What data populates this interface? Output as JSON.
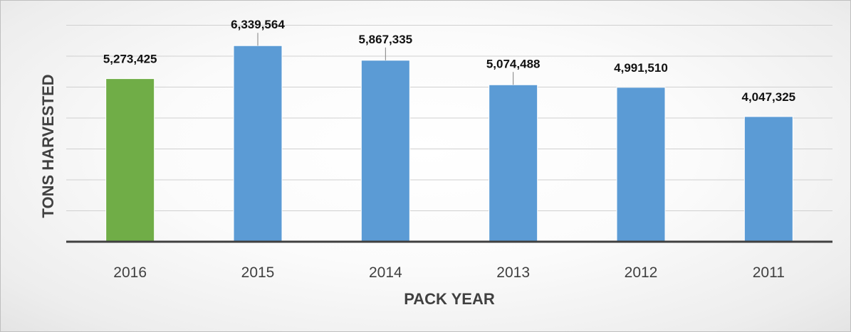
{
  "chart_data": {
    "type": "bar",
    "title": "",
    "xlabel": "PACK YEAR",
    "ylabel": "TONS HARVESTED",
    "categories": [
      "2016",
      "2015",
      "2014",
      "2013",
      "2012",
      "2011"
    ],
    "values": [
      5273425,
      6339564,
      5867335,
      5074488,
      4991510,
      4047325
    ],
    "data_labels": [
      "5,273,425",
      "6,339,564",
      "5,867,335",
      "5,074,488",
      "4,991,510",
      "4,047,325"
    ],
    "bar_colors": [
      "#70ad47",
      "#5b9bd5",
      "#5b9bd5",
      "#5b9bd5",
      "#5b9bd5",
      "#5b9bd5"
    ],
    "ylim": [
      0,
      7000000
    ],
    "grid": true,
    "legend": "none"
  }
}
